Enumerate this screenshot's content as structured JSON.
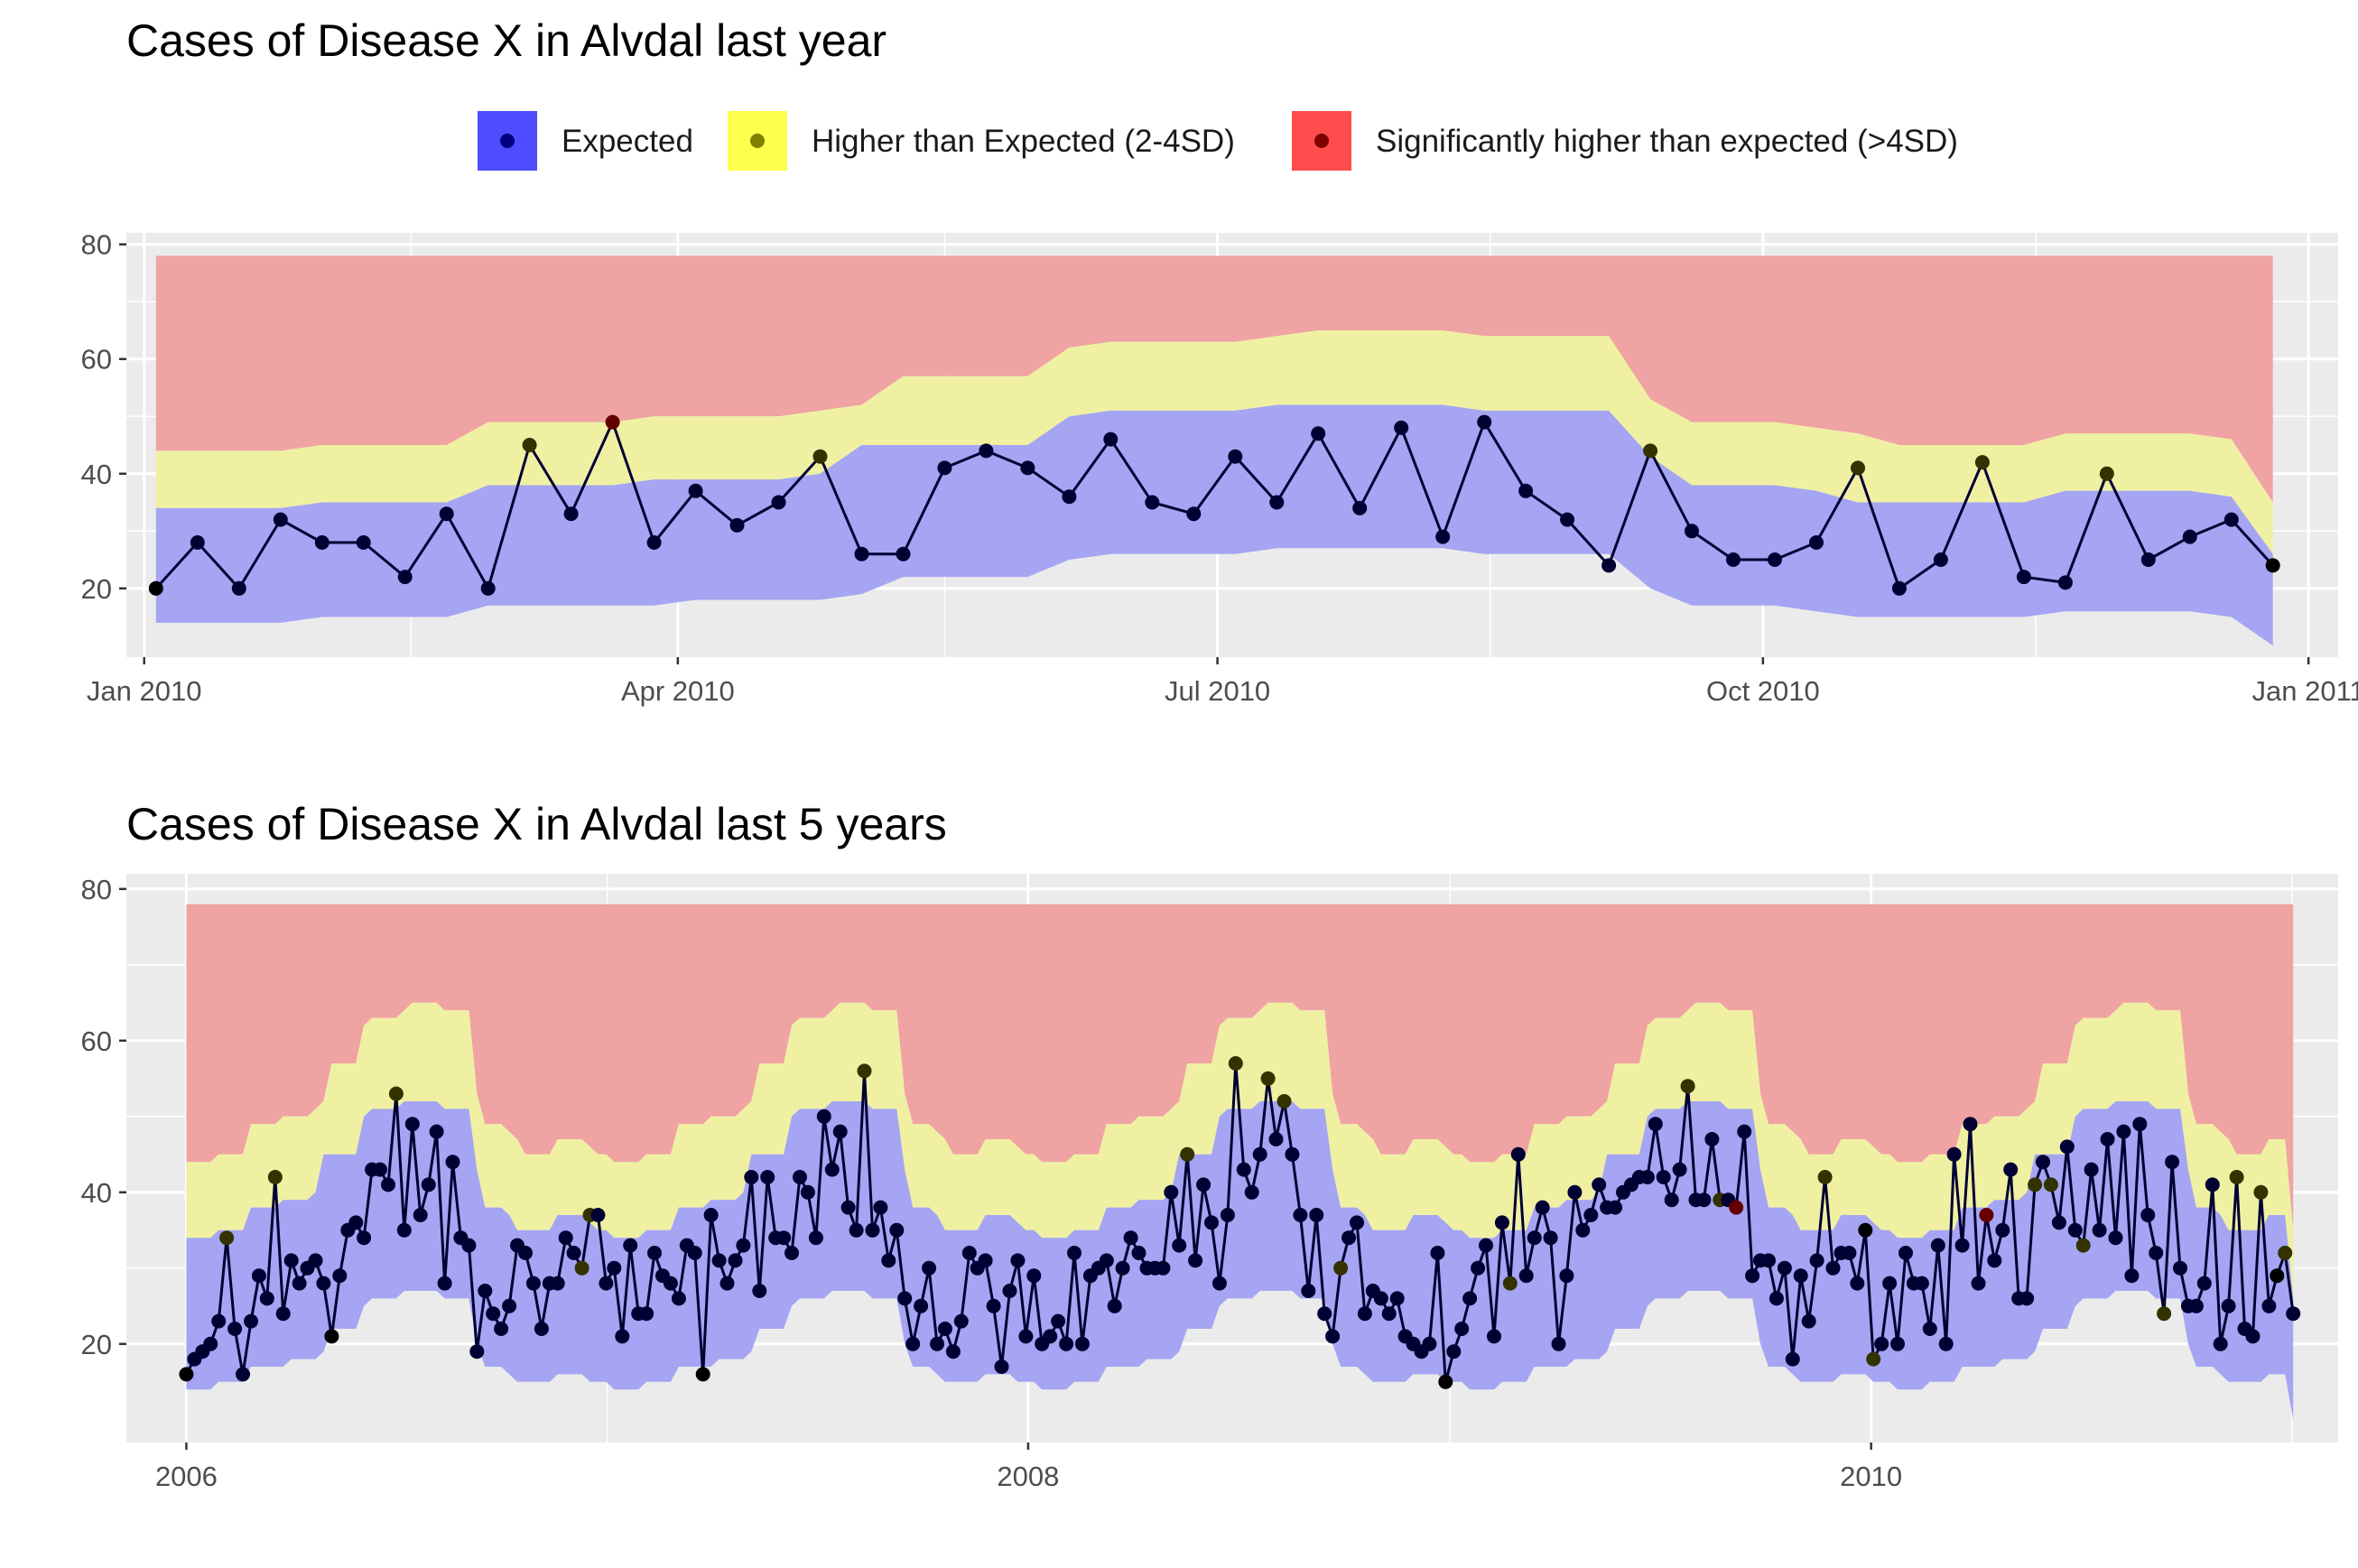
{
  "legend": {
    "items": [
      {
        "label": "Expected",
        "fill": "#4d4dff",
        "dot": "#000080"
      },
      {
        "label": "Higher than Expected (2-4SD)",
        "fill": "#ffff4d",
        "dot": "#808000"
      },
      {
        "label": "Significantly higher than expected (>4SD)",
        "fill": "#ff4d4d",
        "dot": "#800000"
      }
    ]
  },
  "colors": {
    "panel_bg": "#ebebeb",
    "gridline": "#ffffff",
    "band_expected": "#a5a5f3",
    "band_higher": "#f0f0a3",
    "band_significant": "#f0a3a3",
    "line": "#000033",
    "point_expected": "#000033",
    "point_higher": "#333300",
    "point_significant": "#660000",
    "point_normal": "#000000"
  },
  "chart_data": [
    {
      "type": "area",
      "title": "Cases of Disease X in Alvdal last year",
      "xlabel": "",
      "ylabel": "",
      "x_unit": "week",
      "xlim": [
        "2009-12-29",
        "2011-01-06"
      ],
      "ylim": [
        8,
        82
      ],
      "yticks": [
        20,
        40,
        60,
        80
      ],
      "xticks": [
        {
          "label": "Jan 2010",
          "date": "2010-01-01"
        },
        {
          "label": "Apr 2010",
          "date": "2010-04-01"
        },
        {
          "label": "Jul 2010",
          "date": "2010-07-01"
        },
        {
          "label": "Oct 2010",
          "date": "2010-10-01"
        },
        {
          "label": "Jan 2011",
          "date": "2011-01-01"
        }
      ],
      "xminor": [
        "2010-02-15",
        "2010-05-16",
        "2010-08-16",
        "2010-11-16"
      ],
      "start_date": "2010-01-03",
      "step_days": 7,
      "band_top": 78,
      "series": [
        {
          "name": "cases",
          "values": [
            20,
            28,
            20,
            32,
            28,
            28,
            22,
            33,
            20,
            45,
            33,
            49,
            28,
            37,
            31,
            35,
            43,
            26,
            26,
            41,
            44,
            41,
            36,
            46,
            35,
            33,
            43,
            35,
            47,
            34,
            48,
            29,
            49,
            37,
            32,
            24,
            44,
            30,
            25,
            25,
            28,
            41,
            20,
            25,
            42,
            22,
            21,
            40,
            25,
            29,
            32,
            24
          ]
        }
      ],
      "lower": [
        14,
        14,
        14,
        14,
        15,
        15,
        15,
        15,
        17,
        17,
        17,
        17,
        17,
        18,
        18,
        18,
        18,
        19,
        22,
        22,
        22,
        22,
        25,
        26,
        26,
        26,
        26,
        27,
        27,
        27,
        27,
        27,
        26,
        26,
        26,
        26,
        20,
        17,
        17,
        17,
        16,
        15,
        15,
        15,
        15,
        15,
        16,
        16,
        16,
        16,
        15,
        15,
        15,
        10
      ],
      "expected_upper": [
        34,
        34,
        34,
        34,
        35,
        35,
        35,
        35,
        38,
        38,
        38,
        38,
        39,
        39,
        39,
        39,
        40,
        45,
        45,
        45,
        45,
        45,
        50,
        51,
        51,
        51,
        51,
        52,
        52,
        52,
        52,
        52,
        51,
        51,
        51,
        51,
        43,
        38,
        38,
        38,
        37,
        35,
        35,
        35,
        35,
        35,
        37,
        37,
        37,
        37,
        36,
        35,
        35,
        26
      ],
      "higher_upper": [
        44,
        44,
        44,
        44,
        45,
        45,
        45,
        45,
        49,
        49,
        49,
        49,
        50,
        50,
        50,
        50,
        51,
        52,
        57,
        57,
        57,
        57,
        62,
        63,
        63,
        63,
        63,
        64,
        65,
        65,
        65,
        65,
        64,
        64,
        64,
        64,
        53,
        49,
        49,
        49,
        48,
        47,
        45,
        45,
        45,
        45,
        47,
        47,
        47,
        47,
        46,
        45,
        45,
        35
      ],
      "status": [
        "n",
        "e",
        "e",
        "e",
        "e",
        "e",
        "e",
        "e",
        "e",
        "h",
        "e",
        "s",
        "e",
        "e",
        "e",
        "e",
        "h",
        "e",
        "e",
        "e",
        "e",
        "e",
        "e",
        "e",
        "e",
        "e",
        "e",
        "e",
        "e",
        "e",
        "e",
        "e",
        "e",
        "e",
        "e",
        "e",
        "h",
        "e",
        "e",
        "e",
        "e",
        "h",
        "e",
        "e",
        "h",
        "e",
        "e",
        "h",
        "e",
        "e",
        "e",
        "n"
      ]
    },
    {
      "type": "area",
      "title": "Cases of Disease X in Alvdal last 5 years",
      "xlabel": "",
      "ylabel": "",
      "x_unit": "week",
      "xlim": [
        "2005-11-10",
        "2011-02-10"
      ],
      "ylim": [
        7,
        82
      ],
      "yticks": [
        20,
        40,
        60,
        80
      ],
      "xticks": [
        {
          "label": "2006",
          "date": "2006-01-01"
        },
        {
          "label": "2008",
          "date": "2008-01-01"
        },
        {
          "label": "2010",
          "date": "2010-01-01"
        }
      ],
      "xminor": [
        "2007-01-01",
        "2009-01-01",
        "2011-01-01"
      ],
      "start_date": "2006-01-01",
      "step_days": 7,
      "band_top": 78,
      "series": [
        {
          "name": "cases",
          "values": [
            16,
            18,
            19,
            20,
            23,
            34,
            22,
            16,
            23,
            29,
            26,
            42,
            24,
            31,
            28,
            30,
            31,
            28,
            21,
            29,
            35,
            36,
            34,
            43,
            43,
            41,
            53,
            35,
            49,
            37,
            41,
            48,
            28,
            44,
            34,
            33,
            19,
            27,
            24,
            22,
            25,
            33,
            32,
            28,
            22,
            28,
            28,
            34,
            32,
            30,
            37,
            37,
            28,
            30,
            21,
            33,
            24,
            24,
            32,
            29,
            28,
            26,
            33,
            32,
            16,
            37,
            31,
            28,
            31,
            33,
            42,
            27,
            42,
            34,
            34,
            32,
            42,
            40,
            34,
            50,
            43,
            48,
            38,
            35,
            56,
            35,
            38,
            31,
            35,
            26,
            20,
            25,
            30,
            20,
            22,
            19,
            23,
            32,
            30,
            31,
            25,
            17,
            27,
            31,
            21,
            29,
            20,
            21,
            23,
            20,
            32,
            20,
            29,
            30,
            31,
            25,
            30,
            34,
            32,
            30,
            30,
            30,
            40,
            33,
            45,
            31,
            41,
            36,
            28,
            37,
            57,
            43,
            40,
            45,
            55,
            47,
            52,
            45,
            37,
            27,
            37,
            24,
            21,
            30,
            34,
            36,
            24,
            27,
            26,
            24,
            26,
            21,
            20,
            19,
            20,
            32,
            15,
            19,
            22,
            26,
            30,
            33,
            21,
            36,
            28,
            45,
            29,
            34,
            38,
            34,
            20,
            29,
            40,
            35,
            37,
            41,
            38,
            38,
            40,
            41,
            42,
            42,
            49,
            42,
            39,
            43,
            54,
            39,
            39,
            47,
            39,
            39,
            38,
            48,
            29,
            31,
            31,
            26,
            30,
            18,
            29,
            23,
            31,
            42,
            30,
            32,
            32,
            28,
            35,
            18,
            20,
            28,
            20,
            32,
            28,
            28,
            22,
            33,
            20,
            45,
            33,
            49,
            28,
            37,
            31,
            35,
            43,
            26,
            26,
            41,
            44,
            41,
            36,
            46,
            35,
            33,
            43,
            35,
            47,
            34,
            48,
            29,
            49,
            37,
            32,
            24,
            44,
            30,
            25,
            25,
            28,
            41,
            20,
            25,
            42,
            22,
            21,
            40,
            25,
            29,
            32,
            24
          ]
        }
      ],
      "lower_profile": [
        14,
        14,
        14,
        14,
        15,
        15,
        15,
        15,
        17,
        17,
        17,
        17,
        17,
        18,
        18,
        18,
        18,
        19,
        22,
        22,
        22,
        22,
        25,
        26,
        26,
        26,
        26,
        27,
        27,
        27,
        27,
        27,
        26,
        26,
        26,
        26,
        20,
        17,
        17,
        17,
        16,
        15,
        15,
        15,
        15,
        15,
        16,
        16,
        16,
        16,
        15,
        15,
        15
      ],
      "expected_profile": [
        34,
        34,
        34,
        34,
        35,
        35,
        35,
        35,
        38,
        38,
        38,
        38,
        39,
        39,
        39,
        39,
        40,
        45,
        45,
        45,
        45,
        45,
        50,
        51,
        51,
        51,
        51,
        52,
        52,
        52,
        52,
        52,
        51,
        51,
        51,
        51,
        43,
        38,
        38,
        38,
        37,
        35,
        35,
        35,
        35,
        35,
        37,
        37,
        37,
        37,
        36,
        35,
        35
      ],
      "higher_profile": [
        44,
        44,
        44,
        44,
        45,
        45,
        45,
        45,
        49,
        49,
        49,
        49,
        50,
        50,
        50,
        50,
        51,
        52,
        57,
        57,
        57,
        57,
        62,
        63,
        63,
        63,
        63,
        64,
        65,
        65,
        65,
        65,
        64,
        64,
        64,
        64,
        53,
        49,
        49,
        49,
        48,
        47,
        45,
        45,
        45,
        45,
        47,
        47,
        47,
        47,
        46,
        45,
        45
      ],
      "end_lower": 10,
      "end_expected": 26,
      "end_higher": 35,
      "status_overrides": {
        "h": [
          5,
          11,
          26,
          49,
          50,
          84,
          124,
          130,
          134,
          136,
          143,
          164,
          186,
          190,
          203,
          209,
          229,
          231,
          235,
          245,
          254,
          257,
          260,
          263
        ],
        "s": [
          192,
          223
        ],
        "n": [
          0,
          18,
          64,
          156,
          208,
          259
        ]
      }
    }
  ]
}
